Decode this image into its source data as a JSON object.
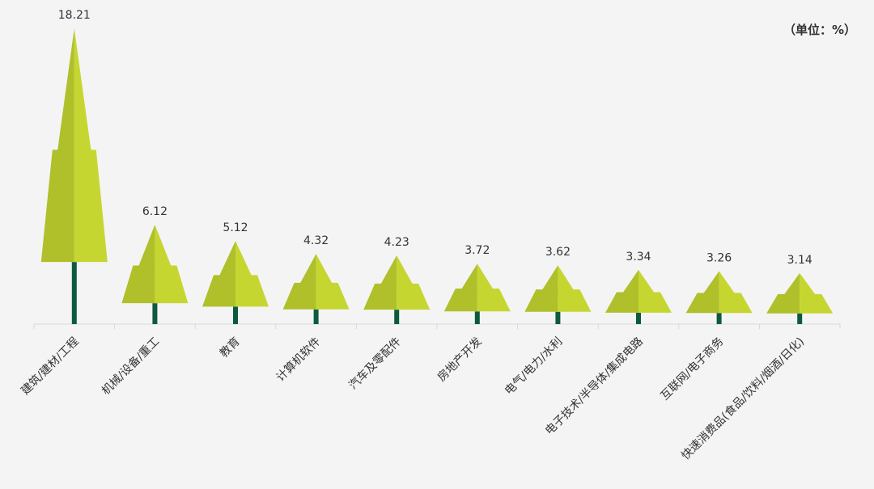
{
  "chart_data": {
    "type": "bar",
    "style": "tree-pictogram",
    "unit_label": "（单位：%）",
    "categories": [
      "建筑/建材/工程",
      "机械/设备/重工",
      "教育",
      "计算机软件",
      "汽车及零配件",
      "房地产开发",
      "电气/电力/水利",
      "电子技术/半导体/集成电路",
      "互联网/电子商务",
      "快速消费品(食品/饮料/烟酒/日化)"
    ],
    "values": [
      18.21,
      6.12,
      5.12,
      4.32,
      4.23,
      3.72,
      3.62,
      3.34,
      3.26,
      3.14
    ],
    "data_labels": [
      "18.21",
      "6.12",
      "5.12",
      "4.32",
      "4.23",
      "3.72",
      "3.62",
      "3.34",
      "3.26",
      "3.14"
    ],
    "ylim": [
      0,
      20
    ],
    "grid": false,
    "colors": {
      "foliage_light": "#c6d631",
      "foliage_dark": "#afc02a",
      "trunk": "#0e5a3f",
      "axis": "#d8d8d8"
    }
  }
}
